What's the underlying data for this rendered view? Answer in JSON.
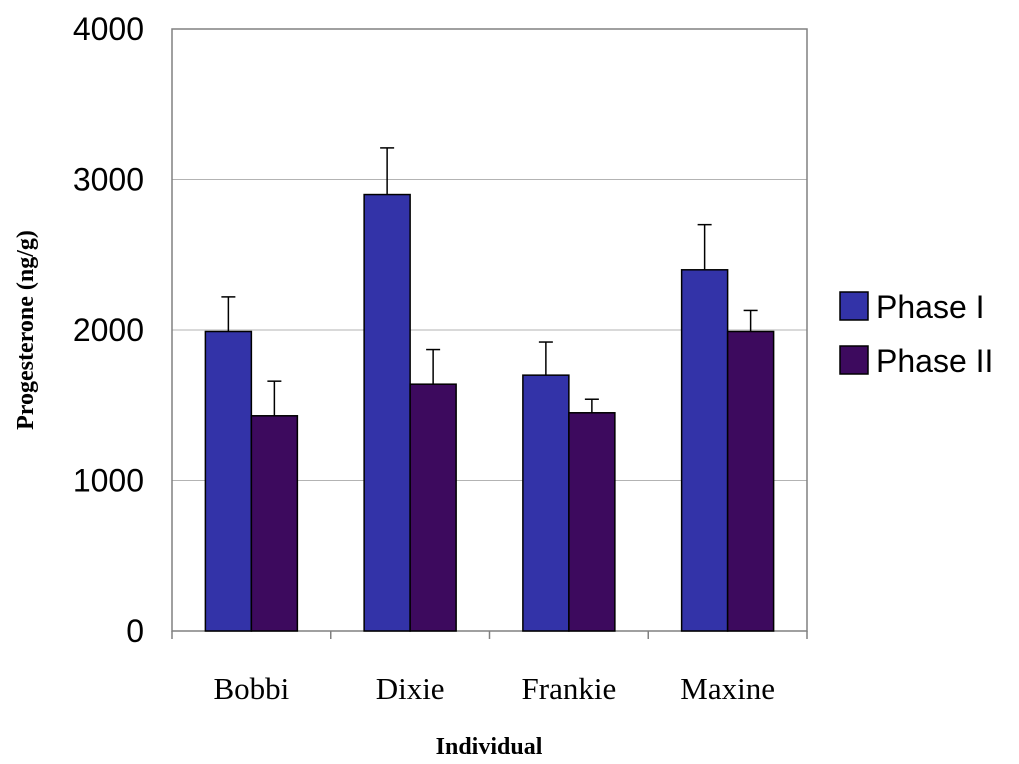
{
  "chart_data": {
    "type": "bar",
    "xlabel": "Individual",
    "ylabel": "Progesterone (ng/g)",
    "categories": [
      "Bobbi",
      "Dixie",
      "Frankie",
      "Maxine"
    ],
    "ylim": [
      0,
      4000
    ],
    "yticks": [
      0,
      1000,
      2000,
      3000,
      4000
    ],
    "grid": true,
    "legend_position": "right",
    "series": [
      {
        "name": "Phase I",
        "color": "#3333a8",
        "values": [
          1990,
          2900,
          1700,
          2400
        ],
        "errors": [
          230,
          310,
          220,
          300
        ]
      },
      {
        "name": "Phase II",
        "color": "#3d0a5e",
        "values": [
          1430,
          1640,
          1450,
          1990
        ],
        "errors": [
          230,
          230,
          90,
          140
        ]
      }
    ]
  }
}
